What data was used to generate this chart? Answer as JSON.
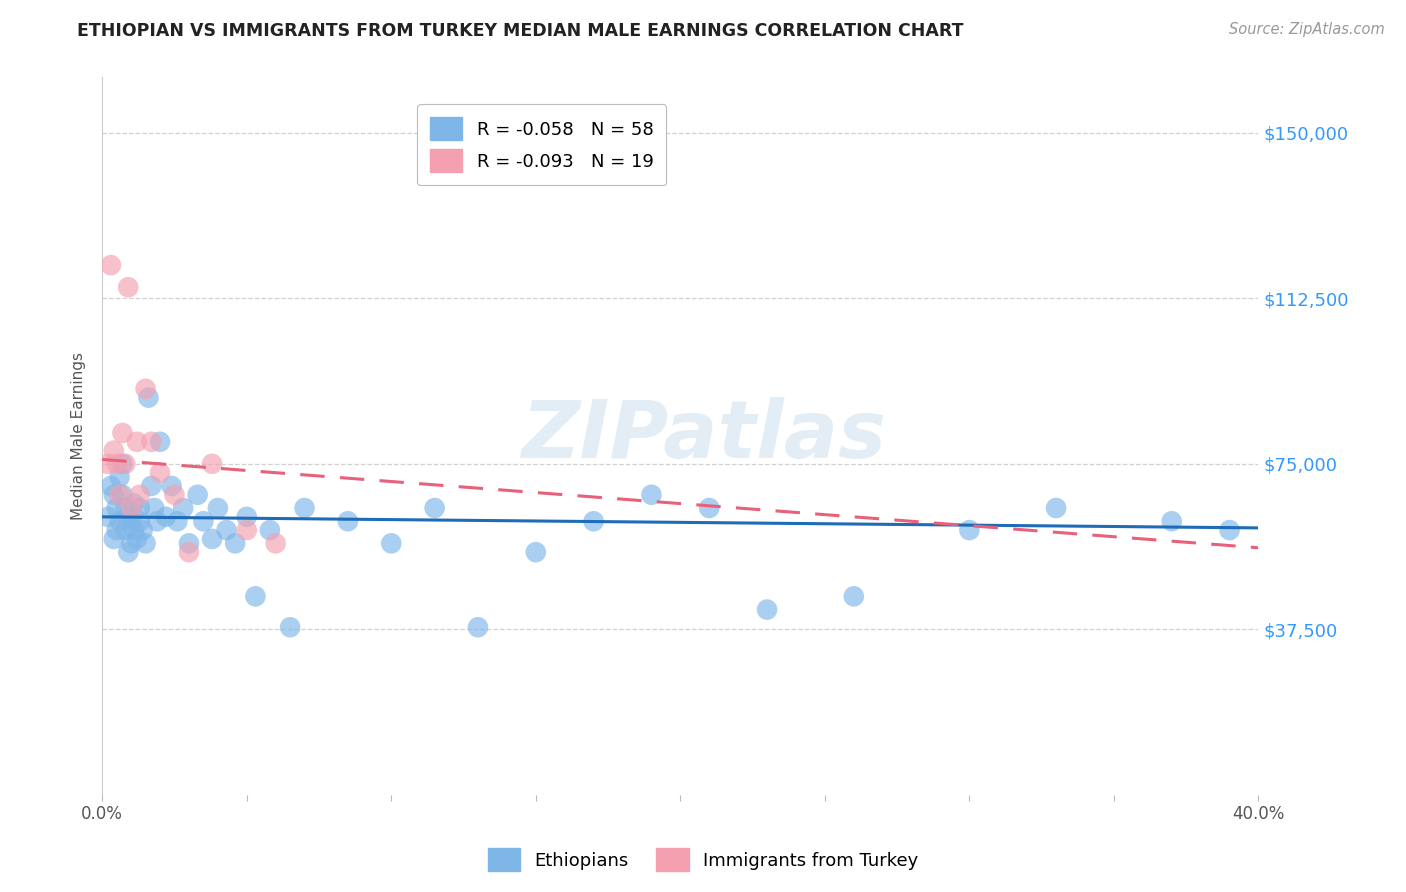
{
  "title": "ETHIOPIAN VS IMMIGRANTS FROM TURKEY MEDIAN MALE EARNINGS CORRELATION CHART",
  "source": "Source: ZipAtlas.com",
  "ylabel": "Median Male Earnings",
  "xlim": [
    0.0,
    0.4
  ],
  "ylim": [
    0,
    162500
  ],
  "yticks": [
    37500,
    75000,
    112500,
    150000
  ],
  "ytick_labels": [
    "$37,500",
    "$75,000",
    "$112,500",
    "$150,000"
  ],
  "xticks": [
    0.0,
    0.05,
    0.1,
    0.15,
    0.2,
    0.25,
    0.3,
    0.35,
    0.4
  ],
  "xtick_labels": [
    "0.0%",
    "",
    "",
    "",
    "",
    "",
    "",
    "",
    "40.0%"
  ],
  "legend1_label": "R = -0.058   N = 58",
  "legend2_label": "R = -0.093   N = 19",
  "watermark": "ZIPatlas",
  "blue_color": "#7EB6E8",
  "pink_color": "#F4A0B0",
  "blue_line_color": "#1E6BB8",
  "pink_line_color": "#E8607A",
  "blue_line_x": [
    0.0,
    0.4
  ],
  "blue_line_y": [
    63000,
    60500
  ],
  "pink_line_x": [
    0.0,
    0.4
  ],
  "pink_line_y": [
    76000,
    56000
  ],
  "ethiopians_x": [
    0.002,
    0.003,
    0.004,
    0.004,
    0.005,
    0.005,
    0.006,
    0.006,
    0.007,
    0.007,
    0.008,
    0.008,
    0.009,
    0.009,
    0.01,
    0.01,
    0.011,
    0.011,
    0.012,
    0.013,
    0.013,
    0.014,
    0.015,
    0.016,
    0.017,
    0.018,
    0.019,
    0.02,
    0.022,
    0.024,
    0.026,
    0.028,
    0.03,
    0.033,
    0.035,
    0.038,
    0.04,
    0.043,
    0.046,
    0.05,
    0.053,
    0.058,
    0.065,
    0.07,
    0.085,
    0.1,
    0.115,
    0.13,
    0.15,
    0.17,
    0.19,
    0.21,
    0.23,
    0.26,
    0.3,
    0.33,
    0.37,
    0.39
  ],
  "ethiopians_y": [
    63000,
    70000,
    68000,
    58000,
    65000,
    60000,
    72000,
    62000,
    68000,
    75000,
    65000,
    60000,
    55000,
    63000,
    62000,
    57000,
    66000,
    60000,
    58000,
    65000,
    62000,
    60000,
    57000,
    90000,
    70000,
    65000,
    62000,
    80000,
    63000,
    70000,
    62000,
    65000,
    57000,
    68000,
    62000,
    58000,
    65000,
    60000,
    57000,
    63000,
    45000,
    60000,
    38000,
    65000,
    62000,
    57000,
    65000,
    38000,
    55000,
    62000,
    68000,
    65000,
    42000,
    45000,
    60000,
    65000,
    62000,
    60000
  ],
  "turkey_x": [
    0.002,
    0.003,
    0.004,
    0.005,
    0.006,
    0.007,
    0.008,
    0.009,
    0.01,
    0.012,
    0.013,
    0.015,
    0.017,
    0.02,
    0.025,
    0.03,
    0.038,
    0.05,
    0.06
  ],
  "turkey_y": [
    75000,
    120000,
    78000,
    75000,
    68000,
    82000,
    75000,
    115000,
    65000,
    80000,
    68000,
    92000,
    80000,
    73000,
    68000,
    55000,
    75000,
    60000,
    57000
  ],
  "background_color": "#FFFFFF",
  "grid_color": "#CCCCCC"
}
